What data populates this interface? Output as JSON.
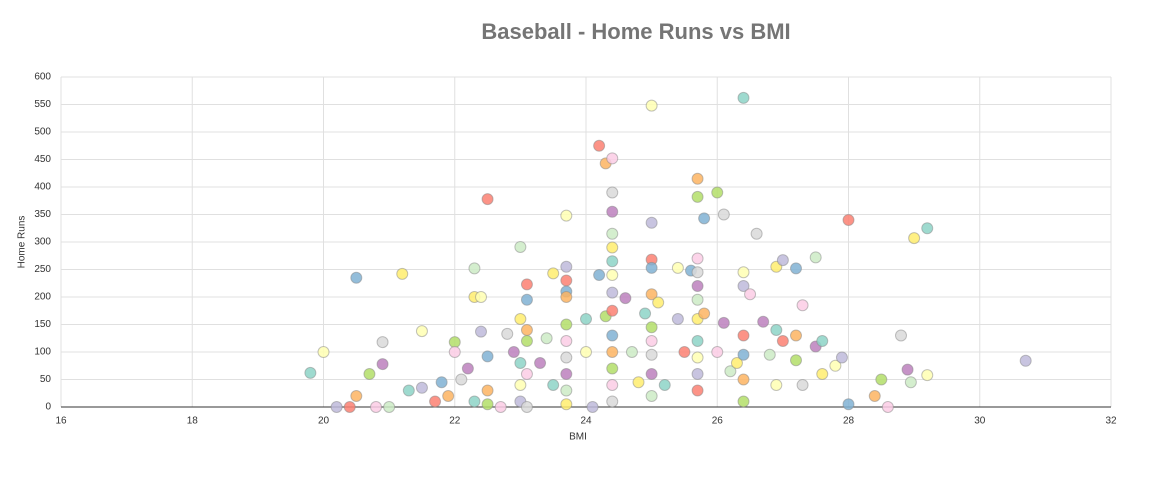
{
  "chart_data": {
    "type": "scatter",
    "title": "Baseball - Home Runs vs BMI",
    "x_label": "BMI",
    "y_label": "Home Runs",
    "xlim": [
      16,
      32
    ],
    "xticks": [
      16,
      18,
      20,
      22,
      24,
      26,
      28,
      30,
      32
    ],
    "ylim": [
      0,
      600
    ],
    "yticks": [
      0,
      50,
      100,
      150,
      200,
      250,
      300,
      350,
      400,
      450,
      500,
      550,
      600
    ],
    "grid": true,
    "palette": [
      "#8dd3c7",
      "#ffffb3",
      "#bebada",
      "#fb8072",
      "#80b1d3",
      "#fdb462",
      "#b3de69",
      "#fccde5",
      "#d9d9d9",
      "#bc80bd",
      "#ccebc5",
      "#ffed6f"
    ],
    "x": [
      19.8,
      20,
      20.2,
      20.4,
      20.5,
      20.5,
      20.7,
      20.8,
      20.9,
      20.9,
      21,
      21.2,
      21.3,
      21.5,
      21.5,
      21.7,
      21.8,
      21.9,
      22,
      22,
      22.1,
      22.2,
      22.3,
      22.3,
      22.3,
      22.4,
      22.4,
      22.5,
      22.5,
      22.5,
      22.5,
      22.7,
      22.8,
      22.9,
      23,
      23,
      23,
      23,
      23,
      23.1,
      23.1,
      23.1,
      23.1,
      23.1,
      23.1,
      23.3,
      23.4,
      23.5,
      23.5,
      23.7,
      23.7,
      23.7,
      23.7,
      23.7,
      23.7,
      23.7,
      23.7,
      23.7,
      23.7,
      23.7,
      24,
      24,
      24.1,
      24.2,
      24.2,
      24.3,
      24.3,
      24.4,
      24.4,
      24.4,
      24.4,
      24.4,
      24.4,
      24.4,
      24.4,
      24.4,
      24.4,
      24.4,
      24.4,
      24.4,
      24.4,
      24.6,
      24.7,
      24.8,
      24.9,
      25,
      25,
      25,
      25,
      25,
      25,
      25,
      25,
      25,
      25,
      25.1,
      25.2,
      25.4,
      25.4,
      25.5,
      25.6,
      25.7,
      25.7,
      25.7,
      25.7,
      25.7,
      25.7,
      25.7,
      25.7,
      25.7,
      25.7,
      25.7,
      25.8,
      25.8,
      26,
      26,
      26.1,
      26.1,
      26.2,
      26.3,
      26.4,
      26.4,
      26.4,
      26.4,
      26.4,
      26.4,
      26.4,
      26.5,
      26.6,
      26.7,
      26.8,
      26.9,
      26.9,
      26.9,
      27,
      27,
      27.2,
      27.2,
      27.2,
      27.3,
      27.3,
      27.5,
      27.5,
      27.6,
      27.6,
      27.8,
      27.9,
      28,
      28,
      28.4,
      28.5,
      28.6,
      28.8,
      28.9,
      28.95,
      29,
      29.2,
      29.2,
      30.7
    ],
    "y": [
      62,
      100,
      0,
      0,
      235,
      20,
      60,
      0,
      118,
      78,
      0,
      242,
      30,
      138,
      35,
      10,
      45,
      20,
      118,
      100,
      50,
      70,
      252,
      200,
      10,
      200,
      137,
      378,
      92,
      30,
      5,
      0,
      133,
      100,
      291,
      160,
      80,
      40,
      10,
      223,
      195,
      140,
      120,
      60,
      0,
      80,
      125,
      243,
      40,
      348,
      255,
      230,
      210,
      200,
      150,
      120,
      90,
      60,
      30,
      5,
      160,
      100,
      0,
      475,
      240,
      443,
      165,
      452,
      390,
      355,
      315,
      290,
      265,
      240,
      208,
      175,
      130,
      100,
      70,
      40,
      10,
      198,
      100,
      45,
      170,
      548,
      335,
      268,
      253,
      205,
      145,
      120,
      95,
      60,
      20,
      190,
      40,
      253,
      160,
      100,
      248,
      415,
      382,
      270,
      245,
      220,
      195,
      160,
      120,
      90,
      60,
      30,
      343,
      170,
      390,
      100,
      350,
      153,
      65,
      80,
      562,
      245,
      220,
      130,
      95,
      50,
      10,
      205,
      315,
      155,
      95,
      255,
      140,
      40,
      267,
      120,
      252,
      130,
      85,
      185,
      40,
      110,
      272,
      60,
      120,
      75,
      90,
      340,
      5,
      20,
      50,
      0,
      130,
      68,
      45,
      307,
      325,
      58,
      84
    ]
  }
}
